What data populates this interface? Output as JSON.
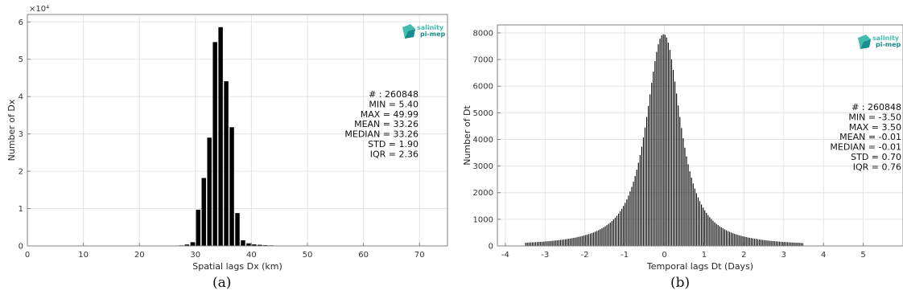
{
  "colors": {
    "bar": "#000000",
    "grid": "#e3e3e3",
    "axis": "#808080",
    "logo_dark": "#1a8c8c",
    "logo_light": "#43bdb0"
  },
  "logo": {
    "line1": "salinity",
    "line2": "pi-mep",
    "icon": "pimep-logo-icon"
  },
  "chart_data": [
    {
      "type": "bar",
      "panel_caption": "(a)",
      "xlabel": "Spatial lags Dx (km)",
      "ylabel": "Number of Dx",
      "y_exponent_label": "×10⁴",
      "xlim": [
        0,
        75
      ],
      "ylim": [
        0,
        6.2
      ],
      "xticks": [
        0,
        10,
        20,
        30,
        40,
        50,
        60,
        70
      ],
      "yticks": [
        0,
        1,
        2,
        3,
        4,
        5,
        6
      ],
      "grid": true,
      "bin_width": 1,
      "x": [
        22,
        23,
        24,
        25,
        26,
        27,
        28,
        29,
        30,
        31,
        32,
        33,
        34,
        35,
        36,
        37,
        38,
        39,
        40,
        41,
        42,
        43,
        44,
        45,
        46,
        47,
        48,
        49
      ],
      "values": [
        0.005,
        0.01,
        0.02,
        0.04,
        0.07,
        0.15,
        0.38,
        1.0,
        9.7,
        18.2,
        29.0,
        54.6,
        58.6,
        44.1,
        31.8,
        8.8,
        1.5,
        0.7,
        0.4,
        0.3,
        0.2,
        0.15,
        0.1,
        0.08,
        0.06,
        0.04,
        0.03,
        0.02
      ],
      "value_scale": 1000,
      "stats": [
        "# : 260848",
        "MIN = 5.40",
        "MAX =  49.99",
        "MEAN = 33.26",
        "MEDIAN = 33.26",
        "STD = 1.90",
        "IQR = 2.36"
      ]
    },
    {
      "type": "bar",
      "panel_caption": "(b)",
      "xlabel": "Temporal lags Dt (Days)",
      "ylabel": "Number of Dt",
      "xlim": [
        -4.2,
        6
      ],
      "ylim": [
        0,
        8300
      ],
      "xticks": [
        -4,
        -3,
        -2,
        -1,
        0,
        1,
        2,
        3,
        4,
        5
      ],
      "yticks": [
        0,
        1000,
        2000,
        3000,
        4000,
        5000,
        6000,
        7000,
        8000
      ],
      "grid": true,
      "distribution": {
        "center": -0.01,
        "peak": 7950,
        "scale_left": 0.52,
        "scale_right": 0.5,
        "min": -3.5,
        "max": 3.5,
        "bin_width": 0.0417
      },
      "stats": [
        "# : 260848",
        "MIN = -3.50",
        "MAX =  3.50",
        "MEAN = -0.01",
        "MEDIAN = -0.01",
        "STD = 0.70",
        "IQR = 0.76"
      ]
    }
  ]
}
